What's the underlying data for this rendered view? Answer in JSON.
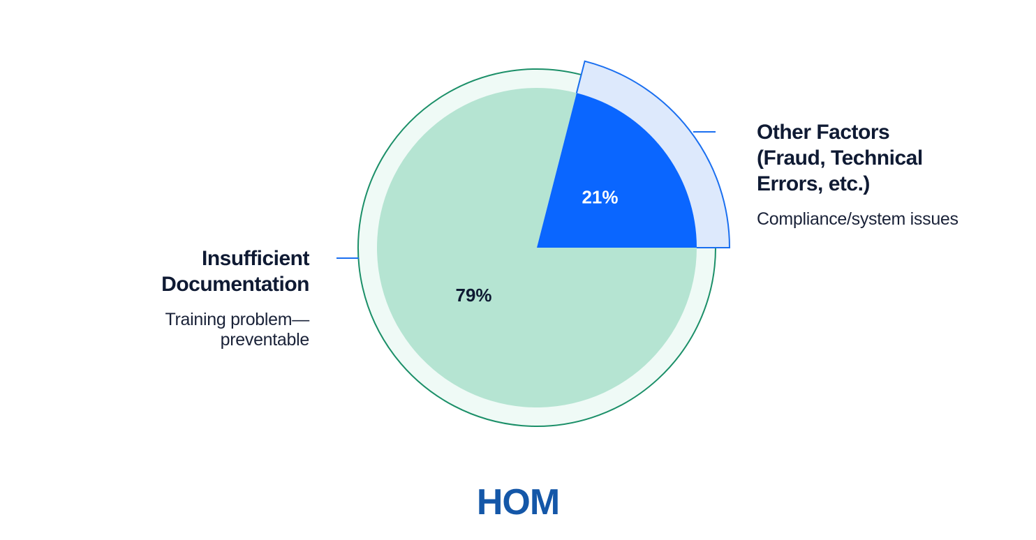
{
  "chart_data": {
    "type": "pie",
    "categories": [
      "Insufficient Documentation",
      "Other Factors (Fraud, Technical Errors, etc.)"
    ],
    "values": [
      79,
      21
    ],
    "value_labels": [
      "79%",
      "21%"
    ],
    "descriptions": [
      "Training problem—preventable",
      "Compliance/system issues"
    ],
    "colors": [
      "#b5e4d2",
      "#0a66ff"
    ],
    "halo_colors": [
      "#effaf6",
      "#dde9fc"
    ],
    "halo_strokes": [
      "#1b8f68",
      "#1a6ff0"
    ]
  },
  "logo": "HOM"
}
